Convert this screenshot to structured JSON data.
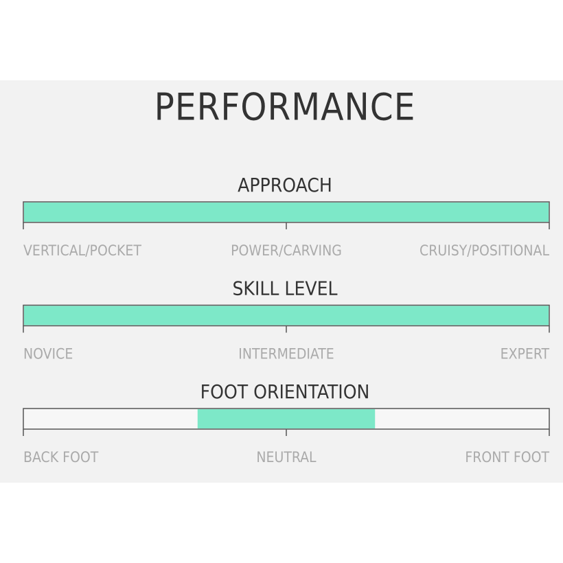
{
  "title": "PERFORMANCE",
  "scale_limits": [
    0,
    1
  ],
  "scales": [
    {
      "title": "APPROACH",
      "labels": [
        "VERTICAL/POCKET",
        "POWER/CARVING",
        "CRUISY/POSITIONAL"
      ],
      "range": [
        0,
        1
      ]
    },
    {
      "title": "SKILL LEVEL",
      "labels": [
        "NOVICE",
        "INTERMEDIATE",
        "EXPERT"
      ],
      "range": [
        0,
        1
      ]
    },
    {
      "title": "FOOT ORIENTATION",
      "labels": [
        "BACK FOOT",
        "NEUTRAL",
        "FRONT FOOT"
      ],
      "range": [
        0.33,
        0.67
      ]
    }
  ]
}
